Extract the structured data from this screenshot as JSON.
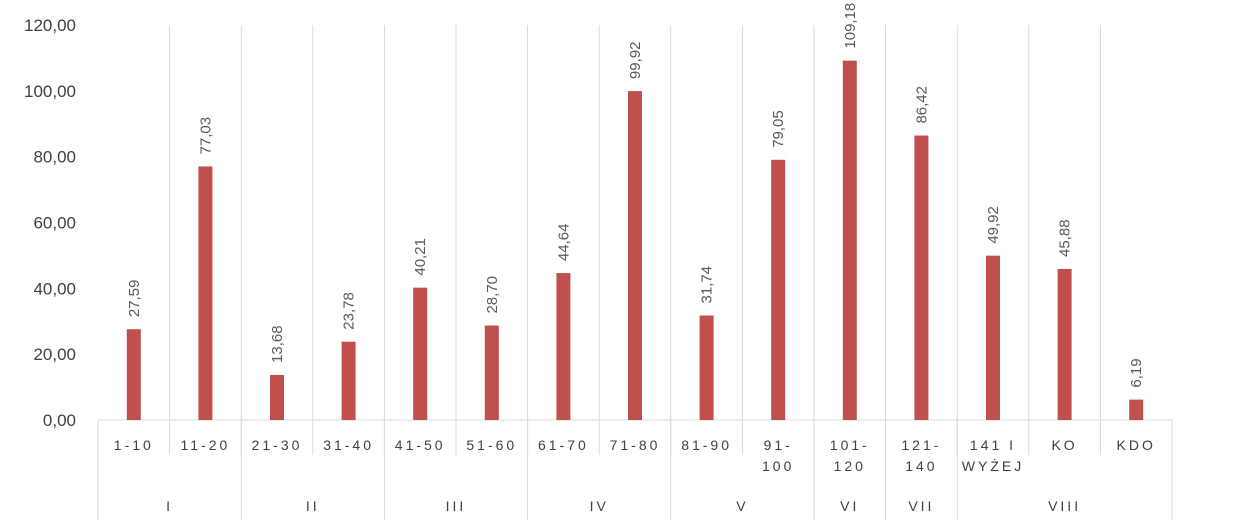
{
  "chart_data": {
    "type": "bar",
    "categories": [
      "1-10",
      "11-20",
      "21-30",
      "31-40",
      "41-50",
      "51-60",
      "61-70",
      "71-80",
      "81-90",
      "91-\n100",
      "101-\n120",
      "121-\n140",
      "141 I\nWYŻEJ",
      "KO",
      "KDO"
    ],
    "groups": [
      {
        "label": "I",
        "span": 2
      },
      {
        "label": "II",
        "span": 2
      },
      {
        "label": "III",
        "span": 2
      },
      {
        "label": "IV",
        "span": 2
      },
      {
        "label": "V",
        "span": 2
      },
      {
        "label": "VI",
        "span": 1
      },
      {
        "label": "VII",
        "span": 1
      },
      {
        "label": "VIII",
        "span": 3
      }
    ],
    "values": [
      27.59,
      77.03,
      13.68,
      23.78,
      40.21,
      28.7,
      44.64,
      99.92,
      31.74,
      79.05,
      109.18,
      86.42,
      49.92,
      45.88,
      6.19
    ],
    "value_labels": [
      "27,59",
      "77,03",
      "13,68",
      "23,78",
      "40,21",
      "28,70",
      "44,64",
      "99,92",
      "31,74",
      "79,05",
      "109,18",
      "86,42",
      "49,92",
      "45,88",
      "6,19"
    ],
    "ylim": [
      0,
      120
    ],
    "yticks": [
      0,
      20,
      40,
      60,
      80,
      100,
      120
    ],
    "ytick_labels": [
      "0,00",
      "20,00",
      "40,00",
      "60,00",
      "80,00",
      "100,00",
      "120,00"
    ],
    "bar_color": "#c0504d",
    "grid_color": "#d9d9d9",
    "grid": "vertical separators",
    "legend": "none",
    "title": "",
    "xlabel": "",
    "ylabel": ""
  }
}
